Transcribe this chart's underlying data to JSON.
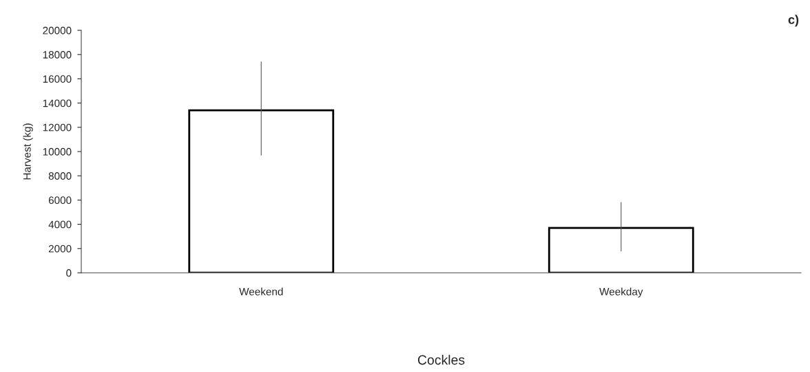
{
  "chart_data": {
    "type": "bar",
    "title": "c)",
    "xlabel": "Cockles",
    "ylabel": "Harvest (kg)",
    "categories": [
      "Weekend",
      "Weekday"
    ],
    "values": [
      13400,
      3700
    ],
    "errors": [
      [
        9700,
        17400
      ],
      [
        1800,
        5800
      ]
    ],
    "color": "#ffffff",
    "ylim": [
      0,
      20000
    ],
    "yticks": [
      0,
      2000,
      4000,
      6000,
      8000,
      10000,
      12000,
      14000,
      16000,
      18000,
      20000
    ],
    "grid": false,
    "legend": false
  }
}
